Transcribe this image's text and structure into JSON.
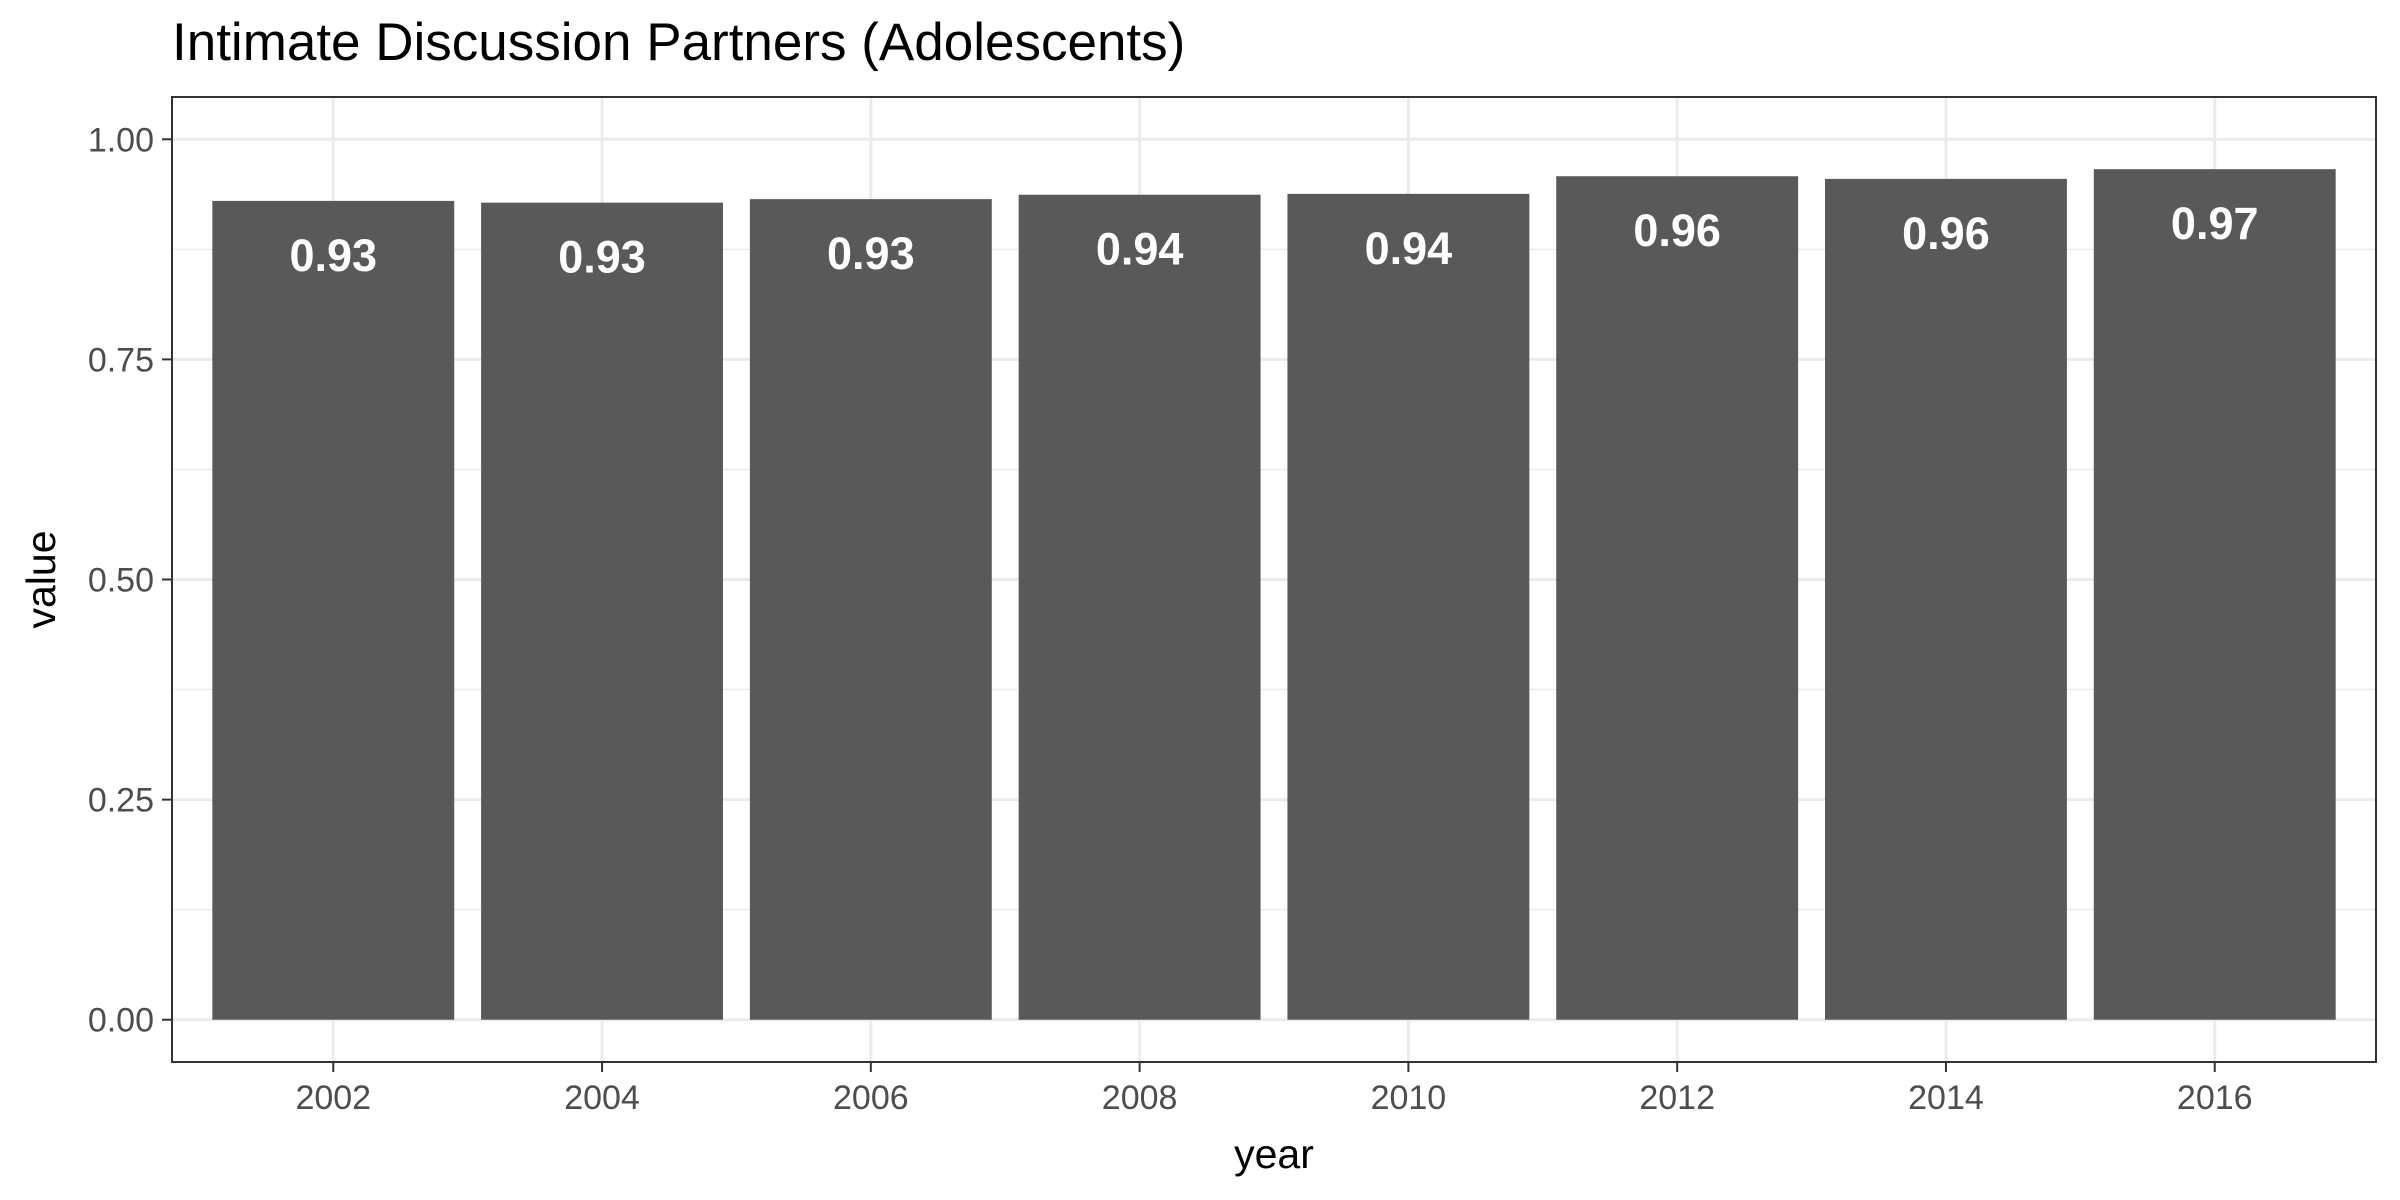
{
  "chart_data": {
    "type": "bar",
    "title": "Intimate Discussion Partners (Adolescents)",
    "xlabel": "year",
    "ylabel": "value",
    "categories": [
      "2002",
      "2004",
      "2006",
      "2008",
      "2010",
      "2012",
      "2014",
      "2016"
    ],
    "values": [
      0.93,
      0.928,
      0.932,
      0.937,
      0.938,
      0.958,
      0.955,
      0.966
    ],
    "data_labels": [
      "0.93",
      "0.93",
      "0.93",
      "0.94",
      "0.94",
      "0.96",
      "0.96",
      "0.97"
    ],
    "ylim": [
      -0.048,
      1.048
    ],
    "yticks": [
      0,
      0.25,
      0.5,
      0.75,
      1.0
    ],
    "ytick_labels": [
      "0.00",
      "0.25",
      "0.50",
      "0.75",
      "1.00"
    ],
    "grid": true,
    "legend": "none",
    "bar_color": "#595959",
    "label_color": "#ffffff",
    "grid_color": "#ebebeb",
    "panel_border_color": "#333333"
  }
}
